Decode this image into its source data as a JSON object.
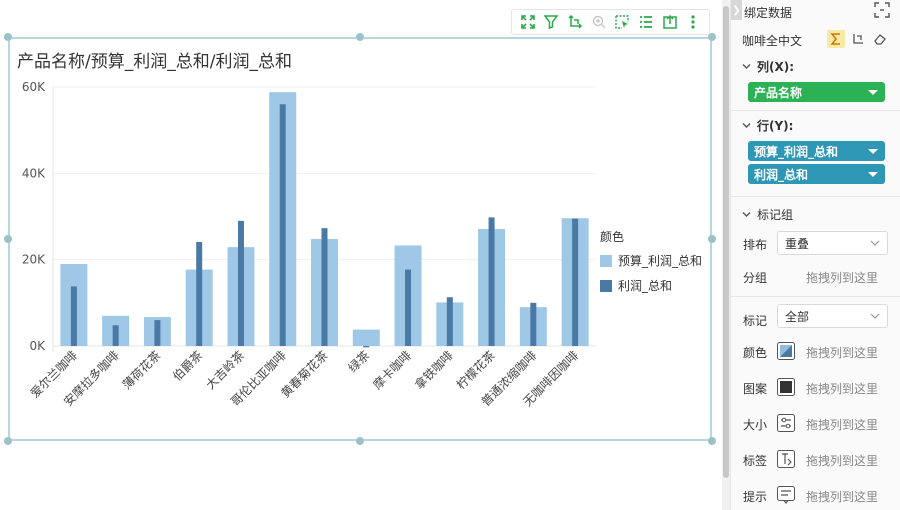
{
  "toolbar": {
    "icons": [
      "expand-icon",
      "filter-icon",
      "axis-swap-icon",
      "zoom-icon",
      "select-icon",
      "list-icon",
      "export-icon",
      "more-icon"
    ]
  },
  "chart_data": {
    "type": "bar",
    "title": "产品名称/预算_利润_总和/利润_总和",
    "categories": [
      "爱尔兰咖啡",
      "安摩拉多咖啡",
      "薄荷花茶",
      "伯爵茶",
      "大吉岭茶",
      "哥伦比亚咖啡",
      "黄春菊花茶",
      "绿茶",
      "摩卡咖啡",
      "拿铁咖啡",
      "柠檬花茶",
      "普通浓缩咖啡",
      "无咖啡因咖啡"
    ],
    "series": [
      {
        "name": "预算_利润_总和",
        "color": "#9fc8e7",
        "values": [
          19000,
          7000,
          6700,
          17700,
          22900,
          58800,
          24800,
          3800,
          23300,
          10100,
          27100,
          9000,
          29600
        ]
      },
      {
        "name": "利润_总和",
        "color": "#4a79a5",
        "values": [
          13800,
          4800,
          6000,
          24100,
          29000,
          56000,
          27300,
          -300,
          17700,
          11300,
          29800,
          10000,
          29500
        ]
      }
    ],
    "yticks": [
      "0K",
      "20K",
      "40K",
      "60K"
    ],
    "ylim": [
      -1500,
      60000
    ],
    "legend_title": "颜色",
    "legend_position": "right",
    "grid": true
  },
  "panel": {
    "title": "绑定数据",
    "dataset": "咖啡全中文",
    "columns_label": "列(X):",
    "columns_field": "产品名称",
    "rows_label": "行(Y):",
    "rows_fields": [
      "预算_利润_总和",
      "利润_总和"
    ],
    "mark_group_label": "标记组",
    "layout_label": "排布",
    "layout_value": "重叠",
    "group_label": "分组",
    "drop_hint": "拖拽列到这里",
    "mark_label": "标记",
    "mark_value": "全部",
    "encodings": [
      {
        "label": "颜色",
        "icon": "color-icon"
      },
      {
        "label": "图案",
        "icon": "pattern-icon"
      },
      {
        "label": "大小",
        "icon": "size-icon"
      },
      {
        "label": "标签",
        "icon": "label-icon"
      },
      {
        "label": "提示",
        "icon": "tooltip-icon"
      }
    ]
  }
}
